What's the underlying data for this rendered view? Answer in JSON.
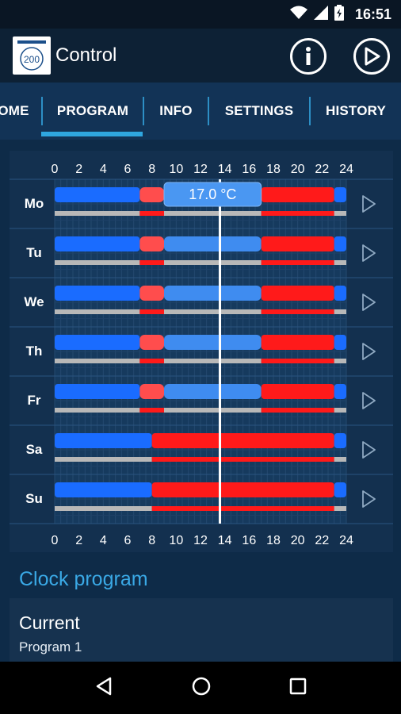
{
  "status_bar": {
    "time": "16:51",
    "icons": [
      "wifi-icon",
      "signal-icon",
      "battery-charging-icon"
    ]
  },
  "app_bar": {
    "title": "Control",
    "logo_text": "200",
    "actions": [
      "info-icon",
      "play-icon"
    ]
  },
  "tabs": [
    {
      "label": "HOME",
      "visible_label": "OME",
      "selected": false
    },
    {
      "label": "PROGRAM",
      "visible_label": "PROGRAM",
      "selected": true
    },
    {
      "label": "INFO",
      "visible_label": "INFO",
      "selected": false
    },
    {
      "label": "SETTINGS",
      "visible_label": "SETTINGS",
      "selected": false
    },
    {
      "label": "HISTORY",
      "visible_label": "HISTORY",
      "selected": false
    }
  ],
  "colors": {
    "cold": "#1a6cff",
    "comfort_light": "#3f8cf0",
    "heat": "#ff1a1a",
    "heat_light": "#ff4d4d",
    "idle": "#b8b8b8",
    "accent": "#2fa7e0"
  },
  "chart_data": {
    "type": "timeline",
    "hour_ticks": [
      "0",
      "2",
      "4",
      "6",
      "8",
      "10",
      "12",
      "14",
      "16",
      "18",
      "20",
      "22",
      "24"
    ],
    "current_time_hour": 13.6,
    "tooltip": {
      "day": "Mo",
      "text": "17.0 °C"
    },
    "days": [
      {
        "day": "Mo",
        "segments": [
          {
            "start": 0,
            "end": 7,
            "mode": "cold"
          },
          {
            "start": 7,
            "end": 9,
            "mode": "heat_light"
          },
          {
            "start": 9,
            "end": 17,
            "mode": "comfort_light"
          },
          {
            "start": 17,
            "end": 23,
            "mode": "heat"
          },
          {
            "start": 23,
            "end": 24,
            "mode": "cold"
          }
        ],
        "baseline": [
          {
            "start": 0,
            "end": 7,
            "mode": "idle"
          },
          {
            "start": 7,
            "end": 9,
            "mode": "heat"
          },
          {
            "start": 9,
            "end": 17,
            "mode": "idle"
          },
          {
            "start": 17,
            "end": 23,
            "mode": "heat"
          },
          {
            "start": 23,
            "end": 24,
            "mode": "idle"
          }
        ]
      },
      {
        "day": "Tu",
        "segments": [
          {
            "start": 0,
            "end": 7,
            "mode": "cold"
          },
          {
            "start": 7,
            "end": 9,
            "mode": "heat_light"
          },
          {
            "start": 9,
            "end": 17,
            "mode": "comfort_light"
          },
          {
            "start": 17,
            "end": 23,
            "mode": "heat"
          },
          {
            "start": 23,
            "end": 24,
            "mode": "cold"
          }
        ],
        "baseline": [
          {
            "start": 0,
            "end": 7,
            "mode": "idle"
          },
          {
            "start": 7,
            "end": 9,
            "mode": "heat"
          },
          {
            "start": 9,
            "end": 17,
            "mode": "idle"
          },
          {
            "start": 17,
            "end": 23,
            "mode": "heat"
          },
          {
            "start": 23,
            "end": 24,
            "mode": "idle"
          }
        ]
      },
      {
        "day": "We",
        "segments": [
          {
            "start": 0,
            "end": 7,
            "mode": "cold"
          },
          {
            "start": 7,
            "end": 9,
            "mode": "heat_light"
          },
          {
            "start": 9,
            "end": 17,
            "mode": "comfort_light"
          },
          {
            "start": 17,
            "end": 23,
            "mode": "heat"
          },
          {
            "start": 23,
            "end": 24,
            "mode": "cold"
          }
        ],
        "baseline": [
          {
            "start": 0,
            "end": 7,
            "mode": "idle"
          },
          {
            "start": 7,
            "end": 9,
            "mode": "heat"
          },
          {
            "start": 9,
            "end": 17,
            "mode": "idle"
          },
          {
            "start": 17,
            "end": 23,
            "mode": "heat"
          },
          {
            "start": 23,
            "end": 24,
            "mode": "idle"
          }
        ]
      },
      {
        "day": "Th",
        "segments": [
          {
            "start": 0,
            "end": 7,
            "mode": "cold"
          },
          {
            "start": 7,
            "end": 9,
            "mode": "heat_light"
          },
          {
            "start": 9,
            "end": 17,
            "mode": "comfort_light"
          },
          {
            "start": 17,
            "end": 23,
            "mode": "heat"
          },
          {
            "start": 23,
            "end": 24,
            "mode": "cold"
          }
        ],
        "baseline": [
          {
            "start": 0,
            "end": 7,
            "mode": "idle"
          },
          {
            "start": 7,
            "end": 9,
            "mode": "heat"
          },
          {
            "start": 9,
            "end": 17,
            "mode": "idle"
          },
          {
            "start": 17,
            "end": 23,
            "mode": "heat"
          },
          {
            "start": 23,
            "end": 24,
            "mode": "idle"
          }
        ]
      },
      {
        "day": "Fr",
        "segments": [
          {
            "start": 0,
            "end": 7,
            "mode": "cold"
          },
          {
            "start": 7,
            "end": 9,
            "mode": "heat_light"
          },
          {
            "start": 9,
            "end": 17,
            "mode": "comfort_light"
          },
          {
            "start": 17,
            "end": 23,
            "mode": "heat"
          },
          {
            "start": 23,
            "end": 24,
            "mode": "cold"
          }
        ],
        "baseline": [
          {
            "start": 0,
            "end": 7,
            "mode": "idle"
          },
          {
            "start": 7,
            "end": 9,
            "mode": "heat"
          },
          {
            "start": 9,
            "end": 17,
            "mode": "idle"
          },
          {
            "start": 17,
            "end": 23,
            "mode": "heat"
          },
          {
            "start": 23,
            "end": 24,
            "mode": "idle"
          }
        ]
      },
      {
        "day": "Sa",
        "segments": [
          {
            "start": 0,
            "end": 8,
            "mode": "cold"
          },
          {
            "start": 8,
            "end": 23,
            "mode": "heat"
          },
          {
            "start": 23,
            "end": 24,
            "mode": "cold"
          }
        ],
        "baseline": [
          {
            "start": 0,
            "end": 8,
            "mode": "idle"
          },
          {
            "start": 8,
            "end": 23,
            "mode": "heat"
          },
          {
            "start": 23,
            "end": 24,
            "mode": "idle"
          }
        ]
      },
      {
        "day": "Su",
        "segments": [
          {
            "start": 0,
            "end": 8,
            "mode": "cold"
          },
          {
            "start": 8,
            "end": 23,
            "mode": "heat"
          },
          {
            "start": 23,
            "end": 24,
            "mode": "cold"
          }
        ],
        "baseline": [
          {
            "start": 0,
            "end": 8,
            "mode": "idle"
          },
          {
            "start": 8,
            "end": 23,
            "mode": "heat"
          },
          {
            "start": 23,
            "end": 24,
            "mode": "idle"
          }
        ]
      }
    ]
  },
  "clock_program": {
    "title": "Clock program",
    "current_label": "Current",
    "current_value": "Program 1"
  },
  "nav_bar": {
    "buttons": [
      "back-icon",
      "home-icon",
      "recents-icon"
    ]
  }
}
